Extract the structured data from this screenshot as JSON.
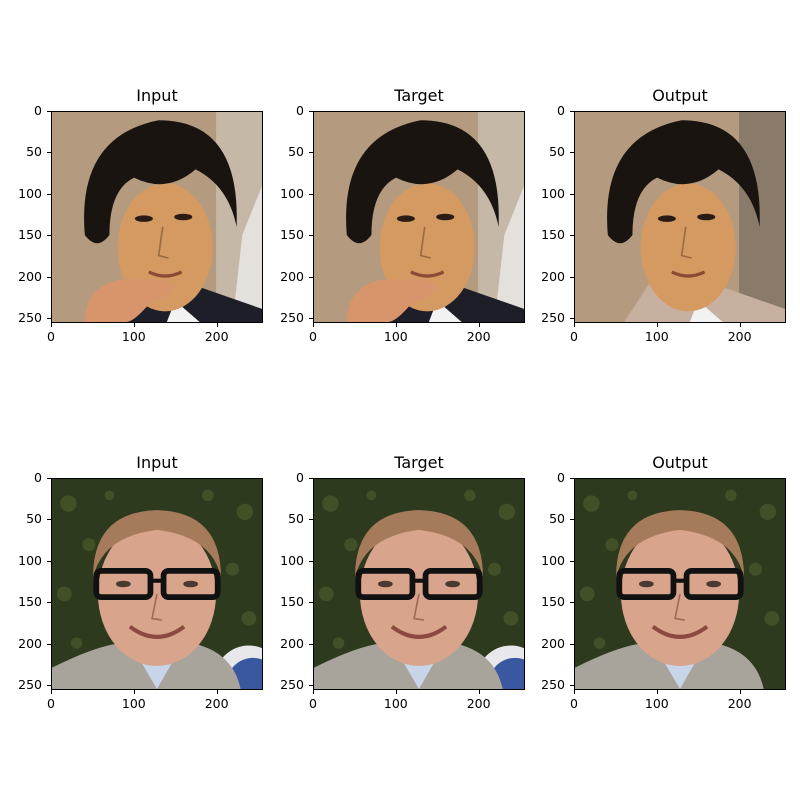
{
  "figure": {
    "rows": [
      {
        "panels": [
          {
            "title": "Input",
            "subject": "asian-man-black-hair-hand-on-chin"
          },
          {
            "title": "Target",
            "subject": "asian-man-black-hair-hand-on-chin"
          },
          {
            "title": "Output",
            "subject": "asian-man-black-hair-generated"
          }
        ]
      },
      {
        "panels": [
          {
            "title": "Input",
            "subject": "man-with-glasses-foliage-background"
          },
          {
            "title": "Target",
            "subject": "man-with-glasses-foliage-background"
          },
          {
            "title": "Output",
            "subject": "man-with-glasses-generated"
          }
        ]
      }
    ],
    "y_ticks": [
      "0",
      "50",
      "100",
      "150",
      "200",
      "250"
    ],
    "x_ticks": [
      "0",
      "100",
      "200"
    ],
    "y_tick_values": [
      0,
      50,
      100,
      150,
      200,
      250
    ],
    "x_tick_values": [
      0,
      100,
      200
    ],
    "image_extent": [
      0,
      256
    ],
    "colors": {
      "hair_dark": "#1a1410",
      "skin_warm": "#d49a62",
      "bg_beige": "#b49a7e",
      "foliage": "#2e3a1e",
      "skin_pink": "#d8a48c",
      "hair_light": "#a67b5c",
      "shirt_gray": "#a8a49c",
      "suit_dark": "#1e1e28",
      "blue_disc": "#3a58a0"
    }
  }
}
